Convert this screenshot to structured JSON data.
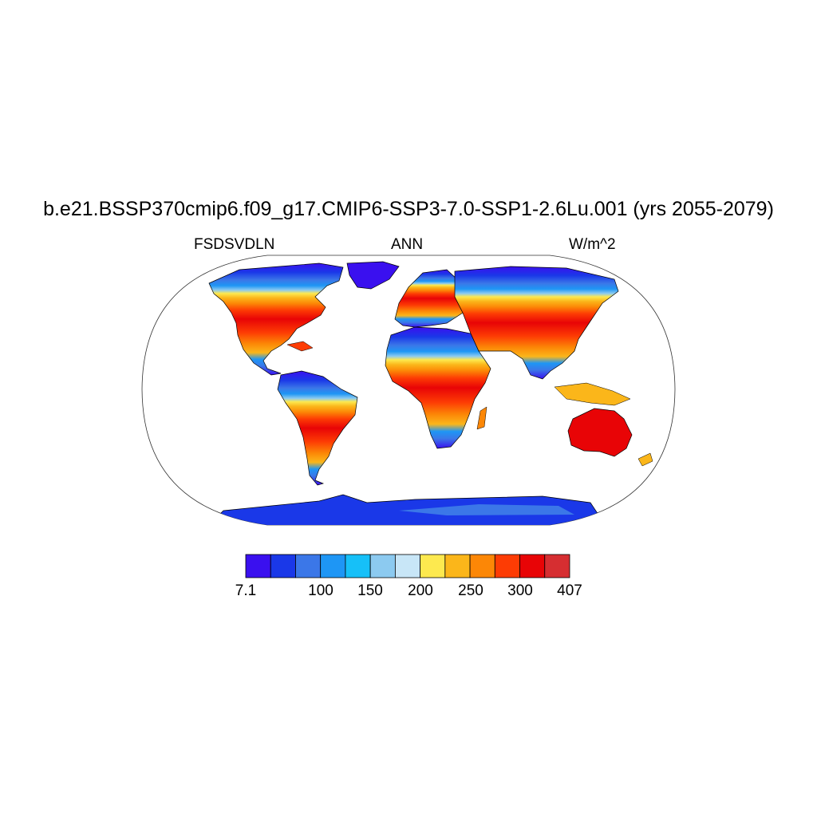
{
  "title": "b.e21.BSSP370cmip6.f09_g17.CMIP6-SSP3-7.0-SSP1-2.6Lu.001 (yrs 2055-2079)",
  "subtitle_left": "FSDSVDLN",
  "subtitle_center": "ANN",
  "subtitle_right": "W/m^2",
  "colorbar": {
    "colors": [
      "#3a10ef",
      "#1a38e8",
      "#3b77e8",
      "#1e96f5",
      "#16c0f8",
      "#8ccaf0",
      "#c8e6f7",
      "#fde94f",
      "#fbb61a",
      "#fc8706",
      "#fd3c04",
      "#e80406",
      "#d62e31"
    ],
    "labels": [
      "7.1",
      "100",
      "150",
      "200",
      "250",
      "300",
      "407"
    ]
  },
  "colors": {
    "coldest": "#3a10ef",
    "hot": "#e80406",
    "hottest": "#d62e31"
  }
}
